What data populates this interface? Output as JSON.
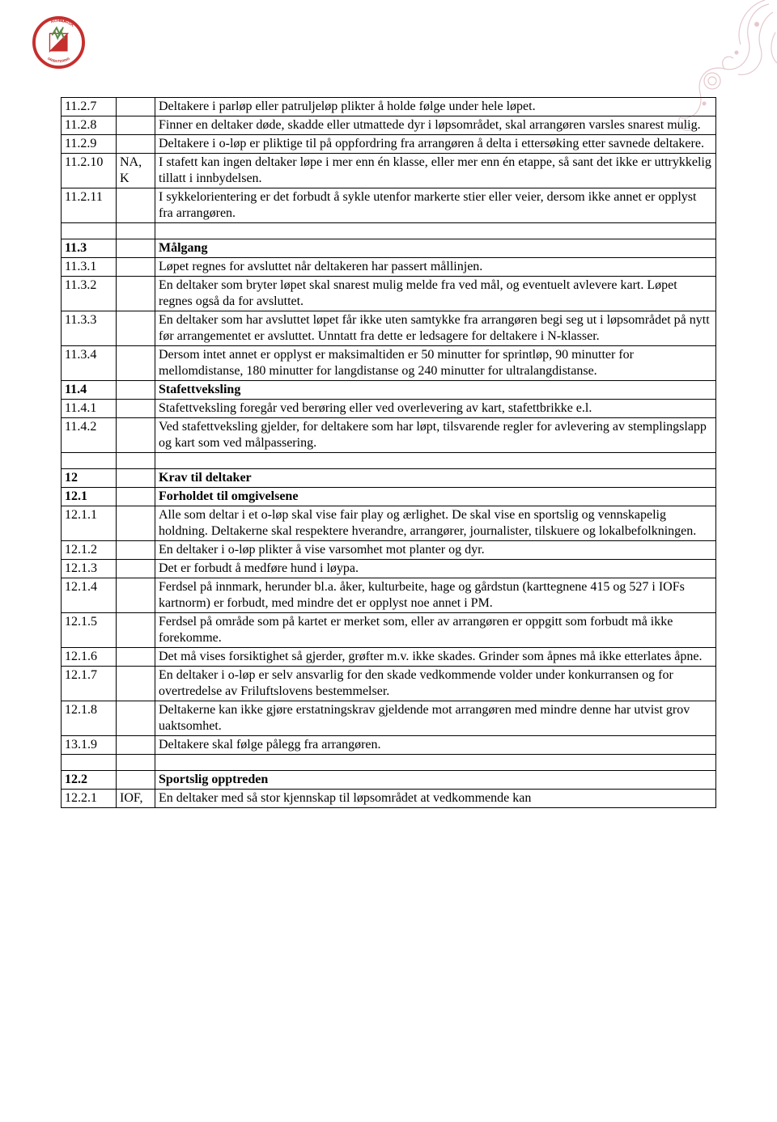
{
  "logo": {
    "top_text": "NORSK",
    "bottom_text": "ORIENTERING",
    "ring_color": "#c52f2e",
    "accent_color": "#5a8a47"
  },
  "decoration_color": "#a13a48",
  "table_border_color": "#000000",
  "font_family": "Times New Roman",
  "base_font_size_pt": 12,
  "rows": [
    {
      "num": "11.2.7",
      "col2": "",
      "text": "Deltakere i parløp eller patruljeløp plikter å holde følge under hele løpet."
    },
    {
      "num": "11.2.8",
      "col2": "",
      "text": "Finner en deltaker døde, skadde eller utmattede dyr i løpsområdet, skal arrangøren varsles snarest mulig."
    },
    {
      "num": "11.2.9",
      "col2": "",
      "text": "Deltakere i o-løp er pliktige til på oppfordring fra arrangøren å delta i ettersøking etter savnede deltakere."
    },
    {
      "num": "11.2.10",
      "col2": "NA, K",
      "text": "I stafett kan ingen deltaker løpe i mer enn én klasse, eller mer enn én etappe, så sant det ikke er uttrykkelig tillatt i innbydelsen."
    },
    {
      "num": "11.2.11",
      "col2": "",
      "text": "I sykkelorientering er det forbudt å sykle utenfor markerte stier eller veier, dersom ikke annet er opplyst fra arrangøren."
    },
    {
      "spacer": true
    },
    {
      "num": "11.3",
      "col2": "",
      "text": "Målgang",
      "bold": true
    },
    {
      "num": "11.3.1",
      "col2": "",
      "text": "Løpet regnes for avsluttet når deltakeren har passert mållinjen."
    },
    {
      "num": "11.3.2",
      "col2": "",
      "text": "En deltaker som bryter løpet skal snarest mulig melde fra ved mål, og eventuelt avlevere kart. Løpet regnes også da for avsluttet."
    },
    {
      "num": "11.3.3",
      "col2": "",
      "text": "En deltaker som har avsluttet løpet får ikke uten samtykke fra arrangøren begi seg ut i løpsområdet på nytt før arrangementet er avsluttet. Unntatt fra dette er ledsagere for deltakere i N-klasser."
    },
    {
      "num": "11.3.4",
      "col2": "",
      "text": "Dersom intet annet er opplyst er maksimaltiden er 50 minutter for sprintløp, 90 minutter for mellomdistanse, 180 minutter for langdistanse og 240 minutter for ultralangdistanse."
    },
    {
      "num": "11.4",
      "col2": "",
      "text": "Stafettveksling",
      "bold": true
    },
    {
      "num": "11.4.1",
      "col2": "",
      "text": "Stafettveksling foregår ved berøring eller ved overlevering av kart, stafettbrikke e.l."
    },
    {
      "num": "11.4.2",
      "col2": "",
      "text": "Ved stafettveksling gjelder, for deltakere som har løpt, tilsvarende regler for avlevering av stemplingslapp og kart som ved målpassering."
    },
    {
      "spacer": true
    },
    {
      "num": "12",
      "col2": "",
      "text": "Krav til deltaker",
      "bold": true
    },
    {
      "num": "12.1",
      "col2": "",
      "text": "Forholdet til omgivelsene",
      "bold": true
    },
    {
      "num": "12.1.1",
      "col2": "",
      "text": "Alle som deltar i et o-løp skal vise fair play og ærlighet. De skal vise en sportslig og vennskapelig holdning. Deltakerne skal respektere hverandre, arrangører, journalister, tilskuere og lokalbefolkningen."
    },
    {
      "num": "12.1.2",
      "col2": "",
      "text": "En deltaker i o-løp plikter å vise varsomhet mot planter og dyr."
    },
    {
      "num": "12.1.3",
      "col2": "",
      "text": "Det er forbudt å medføre hund i løypa."
    },
    {
      "num": "12.1.4",
      "col2": "",
      "text": "Ferdsel på innmark, herunder bl.a. åker, kulturbeite, hage og gårdstun (karttegnene 415 og 527 i IOFs kartnorm) er forbudt, med mindre det er opplyst noe annet i PM."
    },
    {
      "num": "12.1.5",
      "col2": "",
      "text": "Ferdsel på område som på kartet er merket som, eller av arrangøren er oppgitt som forbudt må ikke forekomme."
    },
    {
      "num": "12.1.6",
      "col2": "",
      "text": "Det må vises forsiktighet så gjerder, grøfter m.v. ikke skades. Grinder som åpnes må ikke etterlates åpne."
    },
    {
      "num": "12.1.7",
      "col2": "",
      "text": "En deltaker i o-løp er selv ansvarlig for den skade vedkommende volder under konkurransen og for overtredelse av Friluftslovens bestemmelser."
    },
    {
      "num": "12.1.8",
      "col2": "",
      "text": "Deltakerne kan ikke gjøre erstatningskrav gjeldende mot arrangøren med mindre denne har utvist grov uaktsomhet."
    },
    {
      "num": "13.1.9",
      "col2": "",
      "text": "Deltakere skal følge pålegg fra arrangøren."
    },
    {
      "spacer": true
    },
    {
      "num": "12.2",
      "col2": "",
      "text": "Sportslig opptreden",
      "bold": true
    },
    {
      "num": "12.2.1",
      "col2": "IOF,",
      "text": "En deltaker  med så stor kjennskap til løpsområdet at vedkommende kan"
    }
  ]
}
